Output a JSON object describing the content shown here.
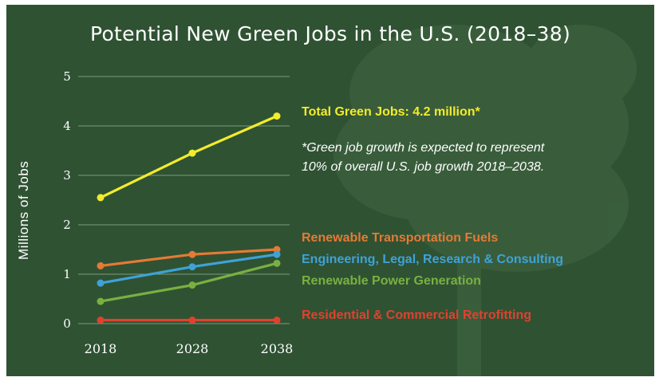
{
  "title": "Potential New Green Jobs in the U.S. (2018–38)",
  "colors": {
    "background": "#2f5233",
    "total": "#f2ec2c",
    "transport": "#e57a35",
    "engineering": "#3ea2d8",
    "power": "#7ab040",
    "retrofit": "#e0412f"
  },
  "chart_data": {
    "type": "line",
    "title": "Potential New Green Jobs in the U.S. (2018–38)",
    "ylabel": "Millions  of Jobs",
    "xlabel": "",
    "x": [
      "2018",
      "2028",
      "2038"
    ],
    "ylim": [
      0,
      5
    ],
    "yticks": [
      "0",
      "1",
      "2",
      "3",
      "4",
      "5"
    ],
    "grid": true,
    "series": [
      {
        "name": "Total Green Jobs: 4.2 million*",
        "color": "#f2ec2c",
        "values": [
          2.55,
          3.45,
          4.2
        ]
      },
      {
        "name": "Renewable Transportation Fuels",
        "color": "#e57a35",
        "values": [
          1.17,
          1.4,
          1.5
        ]
      },
      {
        "name": "Engineering, Legal, Research & Consulting",
        "color": "#3ea2d8",
        "values": [
          0.82,
          1.15,
          1.4
        ]
      },
      {
        "name": "Renewable Power Generation",
        "color": "#7ab040",
        "values": [
          0.45,
          0.78,
          1.22
        ]
      },
      {
        "name": "Residential & Commercial Retrofitting",
        "color": "#e0412f",
        "values": [
          0.07,
          0.07,
          0.07
        ]
      }
    ],
    "annotation": [
      "*Green job growth is expected to represent",
      "10% of overall U.S. job growth 2018–2038."
    ]
  }
}
